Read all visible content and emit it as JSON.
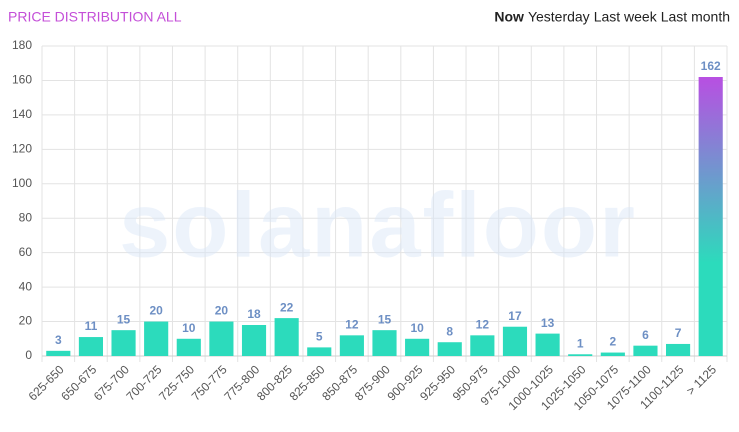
{
  "tabs": [
    "Now",
    "Yesterday",
    "Last week",
    "Last month"
  ],
  "chart_data": {
    "type": "bar",
    "title": "PRICE DISTRIBUTION ALL",
    "watermark": "solanafloor",
    "categories": [
      "625-650",
      "650-675",
      "675-700",
      "700-725",
      "725-750",
      "750-775",
      "775-800",
      "800-825",
      "825-850",
      "850-875",
      "875-900",
      "900-925",
      "925-950",
      "950-975",
      "975-1000",
      "1000-1025",
      "1025-1050",
      "1050-1075",
      "1075-1100",
      "1100-1125",
      "> 1125"
    ],
    "values": [
      3,
      11,
      15,
      20,
      10,
      20,
      18,
      22,
      5,
      12,
      15,
      10,
      8,
      12,
      17,
      13,
      1,
      2,
      6,
      7,
      162
    ],
    "color": "#2cdbbc",
    "gradient_top_color": "#b84fe2",
    "ylim": [
      0,
      180
    ],
    "yticks": [
      0,
      20,
      40,
      60,
      80,
      100,
      120,
      140,
      160,
      180
    ],
    "grid": true
  }
}
